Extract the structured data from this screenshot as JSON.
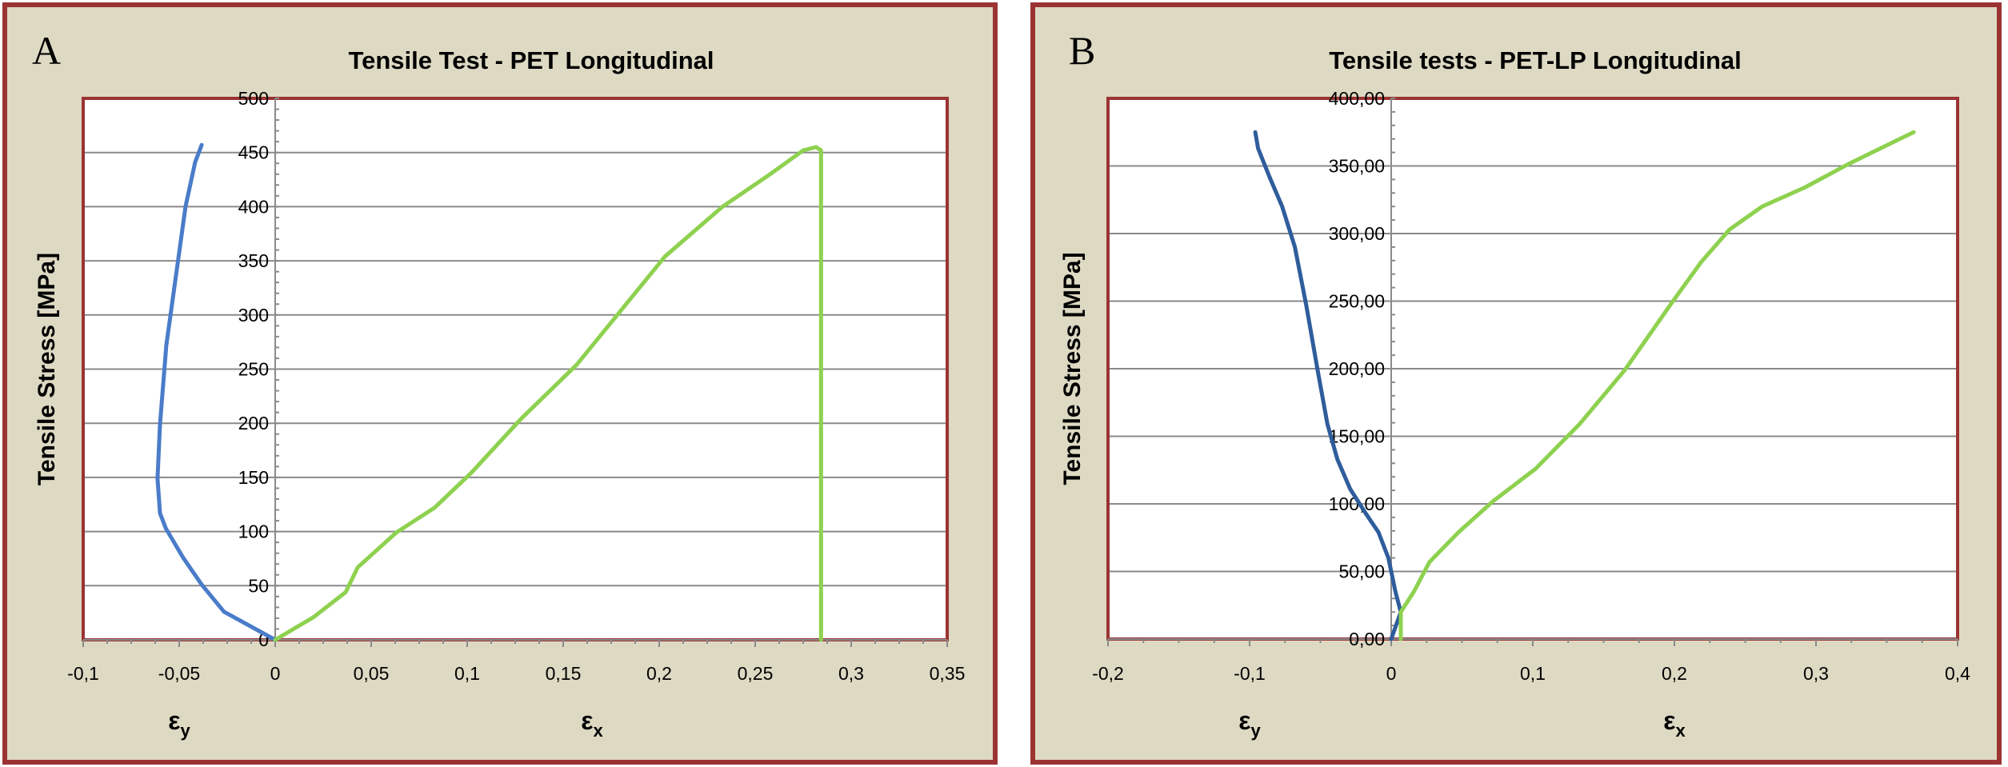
{
  "colors": {
    "panel_bg": "#ddd9c3",
    "frame": "#9b3333",
    "grid": "#8a8a8a",
    "plot_bg": "#ffffff",
    "axis": "#8a8a8a"
  },
  "chart_data": [
    {
      "type": "line",
      "panel_label": "A",
      "title": "Tensile Test - PET Longitudinal",
      "ylabel": "Tensile Stress [MPa]",
      "xlabels": [
        {
          "symbol": "ε",
          "sub": "y",
          "x": -0.05
        },
        {
          "symbol": "ε",
          "sub": "x",
          "x": 0.165
        }
      ],
      "xlim": [
        -0.1,
        0.35
      ],
      "ylim": [
        0,
        500
      ],
      "xticks": [
        -0.1,
        -0.05,
        0,
        0.05,
        0.1,
        0.15,
        0.2,
        0.25,
        0.3,
        0.35
      ],
      "xtick_labels": [
        "-0,1",
        "-0,05",
        "0",
        "0,05",
        "0,1",
        "0,15",
        "0,2",
        "0,25",
        "0,3",
        "0,35"
      ],
      "yticks": [
        0,
        50,
        100,
        150,
        200,
        250,
        300,
        350,
        400,
        450,
        500
      ],
      "ytick_labels": [
        "0",
        "50",
        "100",
        "150",
        "200",
        "250",
        "300",
        "350",
        "400",
        "450",
        "500"
      ],
      "grid": true,
      "series": [
        {
          "name": "εy",
          "color": "#4a7cc9",
          "x": [
            0,
            -0.0267,
            -0.0383,
            -0.048,
            -0.057,
            -0.06,
            -0.0613,
            -0.06,
            -0.0567,
            -0.0517,
            -0.0467,
            -0.0417,
            -0.0383
          ],
          "y": [
            0,
            26,
            51,
            76,
            103,
            117,
            149,
            199,
            272,
            336,
            400,
            441,
            457
          ]
        },
        {
          "name": "εx",
          "color": "#8ed14f",
          "x": [
            0,
            0.02,
            0.0367,
            0.043,
            0.063,
            0.083,
            0.102,
            0.128,
            0.157,
            0.18,
            0.203,
            0.233,
            0.257,
            0.275,
            0.2817,
            0.2843,
            0.2843
          ],
          "y": [
            0,
            21,
            44,
            67,
            99,
            122,
            154,
            204,
            254,
            304,
            354,
            400,
            429,
            452,
            455,
            452,
            0
          ]
        }
      ]
    },
    {
      "type": "line",
      "panel_label": "B",
      "title": "Tensile tests - PET-LP Longitudinal",
      "ylabel": "Tensile Stress [MPa]",
      "xlabels": [
        {
          "symbol": "ε",
          "sub": "y",
          "x": -0.1
        },
        {
          "symbol": "ε",
          "sub": "x",
          "x": 0.2
        }
      ],
      "xlim": [
        -0.2,
        0.4
      ],
      "ylim": [
        0,
        400
      ],
      "xticks": [
        -0.2,
        -0.1,
        0,
        0.1,
        0.2,
        0.3,
        0.4
      ],
      "xtick_labels": [
        "-0,2",
        "-0,1",
        "0",
        "0,1",
        "0,2",
        "0,3",
        "0,4"
      ],
      "yticks": [
        0,
        50,
        100,
        150,
        200,
        250,
        300,
        350,
        400
      ],
      "ytick_labels": [
        "0,00",
        "50,00",
        "100,00",
        "150,00",
        "200,00",
        "250,00",
        "300,00",
        "350,00",
        "400,00"
      ],
      "grid": true,
      "series": [
        {
          "name": "εy",
          "color": "#2f5d9c",
          "x": [
            0,
            0.0068,
            0.003,
            -0.002,
            -0.009,
            -0.018,
            -0.029,
            -0.038,
            -0.045,
            -0.052,
            -0.06,
            -0.068,
            -0.077,
            -0.086,
            -0.094,
            -0.096
          ],
          "y": [
            0,
            20,
            35,
            60,
            79,
            93,
            111,
            133,
            159,
            199,
            247,
            290,
            320,
            342,
            363,
            375
          ]
        },
        {
          "name": "εx",
          "color": "#8ed14f",
          "x": [
            0.0068,
            0.0068,
            0.016,
            0.027,
            0.0475,
            0.072,
            0.102,
            0.133,
            0.165,
            0.199,
            0.219,
            0.239,
            0.262,
            0.292,
            0.324,
            0.369
          ],
          "y": [
            0,
            20,
            35,
            57,
            79,
            102,
            126,
            159,
            199,
            250,
            279,
            303,
            320,
            334,
            352,
            375
          ]
        }
      ]
    }
  ]
}
